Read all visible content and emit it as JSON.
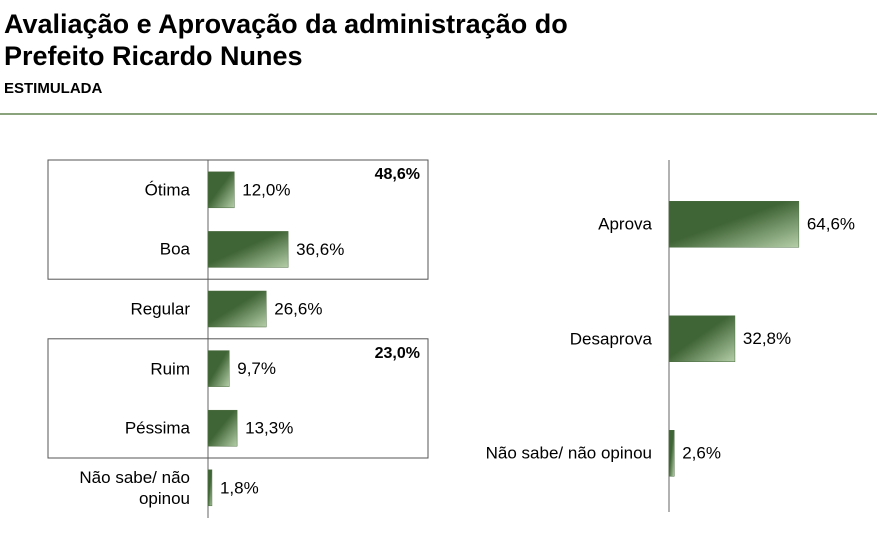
{
  "title": "Avaliação e Aprovação da administração do Prefeito Ricardo Nunes",
  "subtitle": "ESTIMULADA",
  "chart_data": [
    {
      "type": "bar",
      "orientation": "horizontal",
      "color": "#4a6b3f",
      "categories": [
        "Ótima",
        "Boa",
        "Regular",
        "Ruim",
        "Péssima",
        "Não sabe/ não opinou"
      ],
      "values": [
        12.0,
        36.6,
        26.6,
        9.7,
        13.3,
        1.8
      ],
      "value_labels": [
        "12,0%",
        "36,6%",
        "26,6%",
        "9,7%",
        "13,3%",
        "1,8%"
      ],
      "annotations": [
        {
          "value": 48.6,
          "label": "48,6%",
          "categories": [
            "Ótima",
            "Boa"
          ]
        },
        {
          "value": 23.0,
          "label": "23,0%",
          "categories": [
            "Ruim",
            "Péssima"
          ]
        }
      ]
    },
    {
      "type": "bar",
      "orientation": "horizontal",
      "color": "#4a6b3f",
      "categories": [
        "Aprova",
        "Desaprova",
        "Não sabe/ não opinou"
      ],
      "values": [
        64.6,
        32.8,
        2.6
      ],
      "value_labels": [
        "64,6%",
        "32,8%",
        "2,6%"
      ]
    }
  ]
}
